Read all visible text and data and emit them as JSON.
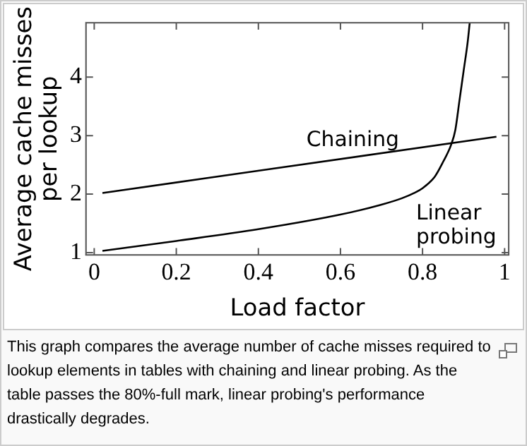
{
  "chart_data": {
    "type": "line",
    "xlabel": "Load factor",
    "ylabel": "Average cache misses per lookup",
    "xlim": [
      -0.02,
      1.01
    ],
    "ylim": [
      0.96,
      4.93
    ],
    "xticks": [
      0,
      0.2,
      0.4,
      0.6,
      0.8,
      1
    ],
    "yticks": [
      1,
      2,
      3,
      4
    ],
    "grid": false,
    "legend": false,
    "marker": "none",
    "line_style": "solid",
    "series": [
      {
        "name": "Chaining",
        "color": "#000000",
        "x": [
          0.02,
          0.98
        ],
        "values": [
          2.02,
          2.98
        ]
      },
      {
        "name": "Linear probing",
        "color": "#000000",
        "x": [
          0.02,
          0.2,
          0.4,
          0.6,
          0.7,
          0.75,
          0.78,
          0.8,
          0.83,
          0.85,
          0.87,
          0.88,
          0.89,
          0.9,
          0.91,
          0.915
        ],
        "values": [
          1.03,
          1.2,
          1.4,
          1.65,
          1.82,
          1.93,
          2.02,
          2.1,
          2.3,
          2.55,
          2.85,
          3.1,
          3.6,
          4.1,
          4.6,
          4.93
        ]
      }
    ],
    "annotations": [
      "This graph compares the average number of cache misses required to lookup elements in tables with chaining and linear probing. As the table passes the 80%-full mark, linear probing's performance drastically degrades."
    ]
  }
}
